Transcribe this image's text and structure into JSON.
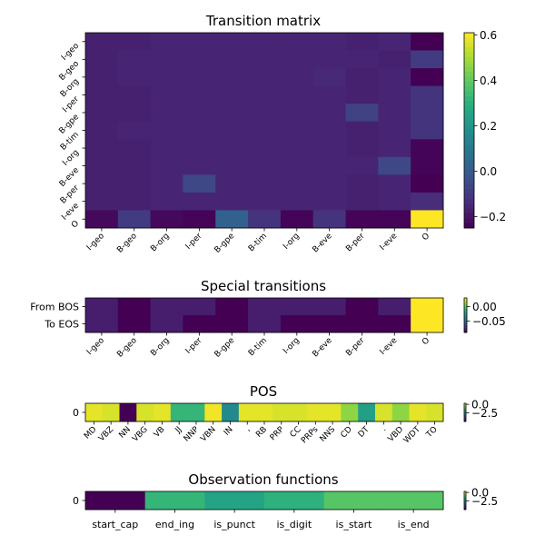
{
  "chart_data": [
    {
      "type": "heatmap",
      "title": "Transition matrix",
      "x_labels": [
        "I-geo",
        "B-geo",
        "B-org",
        "I-per",
        "B-gpe",
        "B-tim",
        "I-org",
        "B-eve",
        "B-per",
        "I-eve",
        "O"
      ],
      "y_labels": [
        "I-geo",
        "B-geo",
        "B-org",
        "I-per",
        "B-gpe",
        "B-tim",
        "I-org",
        "B-eve",
        "B-per",
        "I-eve",
        "O"
      ],
      "values": [
        [
          -0.17,
          -0.17,
          -0.16,
          -0.16,
          -0.16,
          -0.16,
          -0.16,
          -0.16,
          -0.17,
          -0.16,
          -0.25
        ],
        [
          -0.17,
          -0.16,
          -0.16,
          -0.16,
          -0.16,
          -0.16,
          -0.16,
          -0.16,
          -0.16,
          -0.17,
          -0.1
        ],
        [
          -0.17,
          -0.16,
          -0.16,
          -0.16,
          -0.16,
          -0.16,
          -0.16,
          -0.15,
          -0.17,
          -0.16,
          -0.25
        ],
        [
          -0.17,
          -0.17,
          -0.16,
          -0.16,
          -0.16,
          -0.16,
          -0.16,
          -0.16,
          -0.17,
          -0.16,
          -0.12
        ],
        [
          -0.17,
          -0.17,
          -0.16,
          -0.16,
          -0.16,
          -0.16,
          -0.16,
          -0.16,
          -0.08,
          -0.16,
          -0.12
        ],
        [
          -0.17,
          -0.16,
          -0.16,
          -0.16,
          -0.16,
          -0.16,
          -0.16,
          -0.16,
          -0.17,
          -0.16,
          -0.12
        ],
        [
          -0.17,
          -0.17,
          -0.16,
          -0.16,
          -0.16,
          -0.16,
          -0.16,
          -0.16,
          -0.17,
          -0.16,
          -0.24
        ],
        [
          -0.17,
          -0.17,
          -0.16,
          -0.16,
          -0.16,
          -0.16,
          -0.16,
          -0.16,
          -0.16,
          -0.06,
          -0.24
        ],
        [
          -0.17,
          -0.17,
          -0.16,
          -0.06,
          -0.16,
          -0.16,
          -0.16,
          -0.16,
          -0.17,
          -0.16,
          -0.25
        ],
        [
          -0.17,
          -0.17,
          -0.16,
          -0.16,
          -0.16,
          -0.16,
          -0.16,
          -0.16,
          -0.17,
          -0.16,
          -0.14
        ],
        [
          -0.23,
          -0.1,
          -0.23,
          -0.24,
          0.02,
          -0.12,
          -0.24,
          -0.12,
          -0.24,
          -0.24,
          0.61
        ]
      ],
      "colorbar": {
        "min": -0.25,
        "max": 0.61,
        "ticks": [
          -0.2,
          0.0,
          0.2,
          0.4,
          0.6
        ],
        "tick_labels": [
          "−0.2",
          "0.0",
          "0.2",
          "0.4",
          "0.6"
        ]
      },
      "colormap": "viridis"
    },
    {
      "type": "heatmap",
      "title": "Special transitions",
      "x_labels": [
        "I-geo",
        "B-geo",
        "B-org",
        "I-per",
        "B-gpe",
        "B-tim",
        "I-org",
        "B-eve",
        "B-per",
        "I-eve",
        "O"
      ],
      "y_labels": [
        "From BOS",
        "To EOS"
      ],
      "values": [
        [
          -0.08,
          -0.09,
          -0.08,
          -0.08,
          -0.09,
          -0.08,
          -0.08,
          -0.08,
          -0.09,
          -0.08,
          0.03
        ],
        [
          -0.08,
          -0.09,
          -0.08,
          -0.09,
          -0.09,
          -0.08,
          -0.09,
          -0.09,
          -0.09,
          -0.09,
          0.03
        ]
      ],
      "colorbar": {
        "min": -0.09,
        "max": 0.03,
        "ticks": [
          0.0,
          -0.05
        ],
        "tick_labels": [
          "0.00",
          "−0.05"
        ]
      },
      "colormap": "viridis"
    },
    {
      "type": "heatmap",
      "title": "POS",
      "x_labels": [
        "MD",
        "VBZ",
        "NN",
        "VBG",
        "VB",
        "JJ",
        "NNP",
        "VBN",
        "IN",
        ",",
        "RB",
        "PRP",
        "CC",
        "PRPs",
        "NNS",
        "CD",
        "DT",
        ".",
        "VBD",
        "WDT",
        "TO"
      ],
      "y_labels": [
        "0"
      ],
      "values": [
        [
          0.1,
          0.0,
          -5.0,
          0.0,
          0.1,
          -1.5,
          -1.5,
          0.2,
          -2.5,
          0.1,
          0.1,
          0.0,
          0.0,
          0.1,
          0.1,
          -0.6,
          -2.0,
          0.0,
          -0.6,
          0.1,
          0.0
        ]
      ],
      "colorbar": {
        "min": -5.0,
        "max": 0.3,
        "ticks": [
          0.0,
          -2.5
        ],
        "tick_labels": [
          "0.0",
          "−2.5"
        ]
      },
      "colormap": "viridis"
    },
    {
      "type": "heatmap",
      "title": "Observation functions",
      "x_labels": [
        "start_cap",
        "end_ing",
        "is_punct",
        "is_digit",
        "is_start",
        "is_end"
      ],
      "y_labels": [
        "0"
      ],
      "values": [
        [
          -5.0,
          -1.5,
          -1.9,
          -1.6,
          -1.1,
          -1.1
        ]
      ],
      "colorbar": {
        "min": -5.0,
        "max": 0.3,
        "ticks": [
          0.0,
          -2.5
        ],
        "tick_labels": [
          "0.0",
          "−2.5"
        ]
      },
      "colormap": "viridis"
    }
  ]
}
